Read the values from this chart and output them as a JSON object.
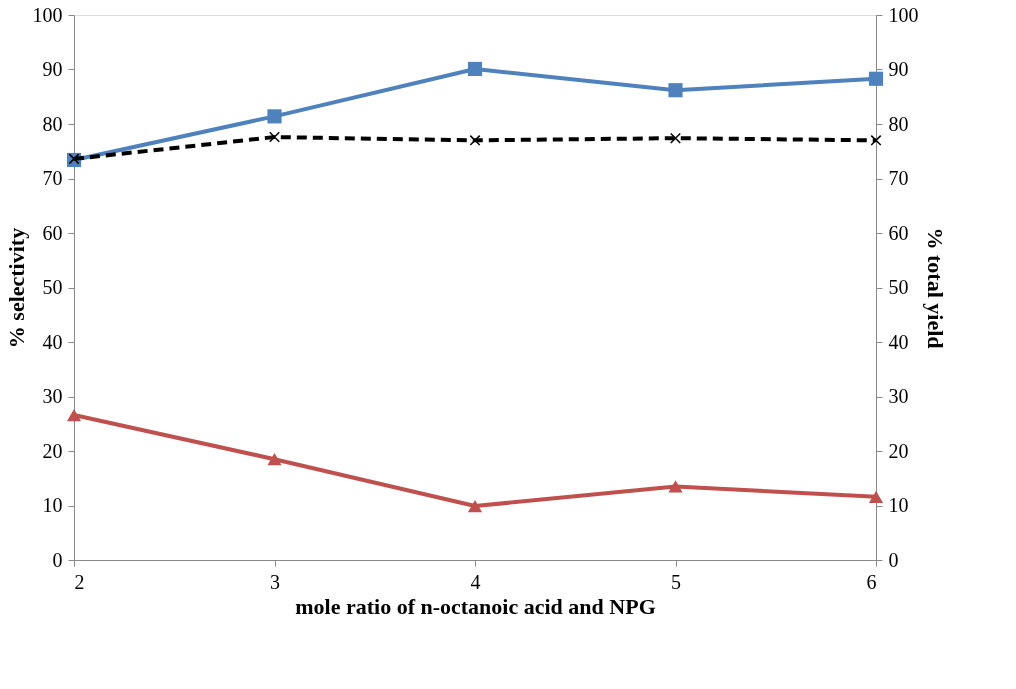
{
  "chart_data": {
    "type": "line",
    "xlabel": "mole ratio of n-octanoic acid and NPG",
    "ylabel": "% selectivity",
    "y2label": "% total yield",
    "x": [
      2,
      3,
      4,
      5,
      6
    ],
    "xlim": [
      2,
      6
    ],
    "xticks": [
      2,
      3,
      4,
      5,
      6
    ],
    "ylim": [
      0,
      100
    ],
    "yticks": [
      0,
      10,
      20,
      30,
      40,
      50,
      60,
      70,
      80,
      90,
      100
    ],
    "y2lim": [
      0,
      100
    ],
    "y2ticks": [
      0,
      10,
      20,
      30,
      40,
      50,
      60,
      70,
      80,
      90,
      100
    ],
    "grid": false,
    "series": [
      {
        "color": "#4f81bd",
        "values": [
          73.4,
          81.4,
          90.1,
          86.2,
          88.3
        ],
        "marker": "square",
        "line_style": "solid"
      },
      {
        "color": "#c0504d",
        "values": [
          26.6,
          18.5,
          9.9,
          13.5,
          11.6
        ],
        "marker": "triangle",
        "line_style": "solid"
      },
      {
        "color": "#000000",
        "values": [
          73.6,
          77.6,
          77.0,
          77.4,
          77.0
        ],
        "marker": "cross",
        "line_style": "dashed",
        "axis": "y2"
      }
    ]
  }
}
